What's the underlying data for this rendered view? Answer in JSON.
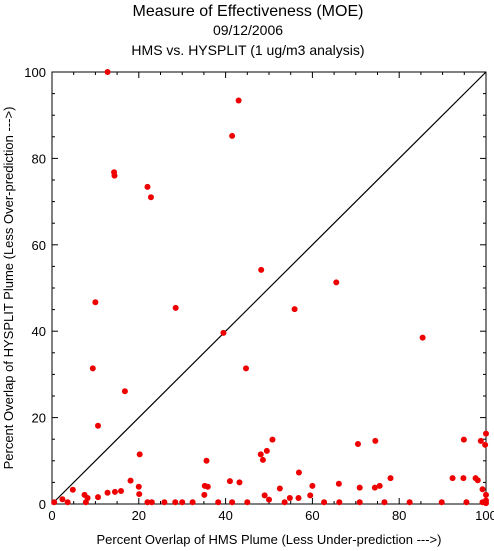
{
  "chart_data": {
    "type": "scatter",
    "title": "Measure of Effectiveness (MOE)",
    "date": "09/12/2006",
    "subtitle": "HMS vs. HYSPLIT  (1 ug/m3 analysis)",
    "xlabel": "Percent Overlap of HMS Plume (Less Under-prediction --->)",
    "ylabel": "Percent Overlap of HYSPLIT Plume (Less Over-prediction --->)",
    "xlim": [
      0,
      100
    ],
    "ylim": [
      0,
      100
    ],
    "x_ticks": [
      "0",
      "20",
      "40",
      "60",
      "80",
      "100"
    ],
    "y_ticks": [
      "0",
      "20",
      "40",
      "60",
      "80",
      "100"
    ],
    "grid": false,
    "reference_line": "diagonal y = x",
    "marker_color": "#ee0000",
    "points": [
      {
        "x": 12.8,
        "y": 100
      },
      {
        "x": 43,
        "y": 93.4
      },
      {
        "x": 41.5,
        "y": 85.2
      },
      {
        "x": 14.3,
        "y": 76.8
      },
      {
        "x": 14.4,
        "y": 76.0
      },
      {
        "x": 22.0,
        "y": 73.4
      },
      {
        "x": 22.8,
        "y": 71.0
      },
      {
        "x": 48.2,
        "y": 54.2
      },
      {
        "x": 65.5,
        "y": 51.3
      },
      {
        "x": 10.0,
        "y": 46.7
      },
      {
        "x": 28.5,
        "y": 45.4
      },
      {
        "x": 55.9,
        "y": 45.1
      },
      {
        "x": 39.5,
        "y": 39.6
      },
      {
        "x": 85.4,
        "y": 38.5
      },
      {
        "x": 9.4,
        "y": 31.4
      },
      {
        "x": 44.7,
        "y": 31.4
      },
      {
        "x": 16.8,
        "y": 26.1
      },
      {
        "x": 10.6,
        "y": 18.1
      },
      {
        "x": 100,
        "y": 16.3
      },
      {
        "x": 50.8,
        "y": 14.9
      },
      {
        "x": 94.9,
        "y": 14.9
      },
      {
        "x": 74.5,
        "y": 14.6
      },
      {
        "x": 98.8,
        "y": 14.6
      },
      {
        "x": 70.5,
        "y": 13.9
      },
      {
        "x": 99.8,
        "y": 13.7
      },
      {
        "x": 49.5,
        "y": 12.3
      },
      {
        "x": 20.2,
        "y": 11.5
      },
      {
        "x": 48.1,
        "y": 11.5
      },
      {
        "x": 48.6,
        "y": 10.2
      },
      {
        "x": 35.6,
        "y": 10.0
      },
      {
        "x": 56.9,
        "y": 7.3
      },
      {
        "x": 78.0,
        "y": 6.0
      },
      {
        "x": 92.3,
        "y": 6.0
      },
      {
        "x": 94.8,
        "y": 6.0
      },
      {
        "x": 97.6,
        "y": 6.0
      },
      {
        "x": 98.1,
        "y": 5.5
      },
      {
        "x": 18.1,
        "y": 5.4
      },
      {
        "x": 41.0,
        "y": 5.3
      },
      {
        "x": 43.2,
        "y": 5.0
      },
      {
        "x": 66.1,
        "y": 4.7
      },
      {
        "x": 35.2,
        "y": 4.2
      },
      {
        "x": 60.0,
        "y": 4.2
      },
      {
        "x": 75.5,
        "y": 4.2
      },
      {
        "x": 20.0,
        "y": 4.0
      },
      {
        "x": 35.9,
        "y": 4.0
      },
      {
        "x": 70.9,
        "y": 3.8
      },
      {
        "x": 74.4,
        "y": 3.8
      },
      {
        "x": 52.5,
        "y": 3.6
      },
      {
        "x": 99.2,
        "y": 3.4
      },
      {
        "x": 4.8,
        "y": 3.3
      },
      {
        "x": 15.9,
        "y": 3.0
      },
      {
        "x": 14.5,
        "y": 2.8
      },
      {
        "x": 12.8,
        "y": 2.6
      },
      {
        "x": 20.1,
        "y": 2.3
      },
      {
        "x": 7.5,
        "y": 2.1
      },
      {
        "x": 35.1,
        "y": 2.1
      },
      {
        "x": 49.0,
        "y": 2.0
      },
      {
        "x": 59.5,
        "y": 2.0
      },
      {
        "x": 100,
        "y": 2.1
      },
      {
        "x": 10.6,
        "y": 1.6
      },
      {
        "x": 8.2,
        "y": 1.4
      },
      {
        "x": 54.8,
        "y": 1.4
      },
      {
        "x": 56.8,
        "y": 1.4
      },
      {
        "x": 2.4,
        "y": 1.1
      },
      {
        "x": 50.0,
        "y": 1.0
      },
      {
        "x": 100,
        "y": 0.8
      },
      {
        "x": 0.5,
        "y": 0.4
      },
      {
        "x": 3.6,
        "y": 0.4
      },
      {
        "x": 7.8,
        "y": 0.4
      },
      {
        "x": 22.0,
        "y": 0.4
      },
      {
        "x": 23.0,
        "y": 0.4
      },
      {
        "x": 25.9,
        "y": 0.4
      },
      {
        "x": 28.4,
        "y": 0.4
      },
      {
        "x": 30.0,
        "y": 0.4
      },
      {
        "x": 32.4,
        "y": 0.4
      },
      {
        "x": 38.3,
        "y": 0.4
      },
      {
        "x": 41.5,
        "y": 0.4
      },
      {
        "x": 45.0,
        "y": 0.4
      },
      {
        "x": 53.6,
        "y": 0.4
      },
      {
        "x": 62.7,
        "y": 0.4
      },
      {
        "x": 66.2,
        "y": 0.4
      },
      {
        "x": 70.9,
        "y": 0.4
      },
      {
        "x": 76.6,
        "y": 0.4
      },
      {
        "x": 82.4,
        "y": 0.4
      },
      {
        "x": 89.8,
        "y": 0.4
      },
      {
        "x": 95.5,
        "y": 0.4
      },
      {
        "x": 99.2,
        "y": 0.4
      },
      {
        "x": 100,
        "y": 0.2
      }
    ]
  }
}
